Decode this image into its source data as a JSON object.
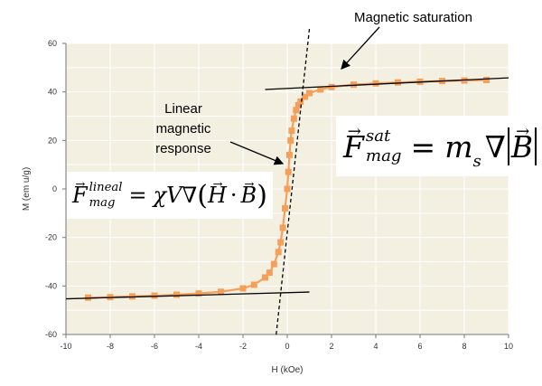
{
  "chart_data": {
    "type": "scatter",
    "xlabel": "H (kOe)",
    "ylabel": "M (em u/g)",
    "xlim": [
      -10,
      10
    ],
    "ylim": [
      -60,
      60
    ],
    "xticks": [
      "-10",
      "-8",
      "-6",
      "-4",
      "-2",
      "0",
      "2",
      "4",
      "6",
      "8",
      "10"
    ],
    "yticks": [
      "60",
      "40",
      "20",
      "0",
      "-20",
      "-40",
      "-60"
    ],
    "grid": true,
    "series": [
      {
        "color": "#f5a05a",
        "marker": "square",
        "x": [
          -9.0,
          -8.0,
          -7.0,
          -6.0,
          -5.0,
          -4.0,
          -3.0,
          -2.0,
          -1.5,
          -1.0,
          -0.8,
          -0.6,
          -0.4,
          -0.3,
          -0.2,
          -0.1,
          0.0,
          0.05,
          0.1,
          0.15,
          0.2,
          0.3,
          0.4,
          0.5,
          0.6,
          0.8,
          1.0,
          1.5,
          2.0,
          3.0,
          4.0,
          5.0,
          6.0,
          7.0,
          8.0,
          9.0
        ],
        "y": [
          -44.8,
          -44.6,
          -44.3,
          -44.0,
          -43.6,
          -43.1,
          -42.4,
          -41.0,
          -39.5,
          -36.5,
          -34.5,
          -31.0,
          -26.0,
          -22.0,
          -16.0,
          -8.0,
          0.0,
          7.0,
          14.0,
          20.0,
          24.0,
          29.0,
          32.5,
          34.5,
          36.0,
          38.0,
          39.5,
          41.0,
          42.0,
          43.0,
          43.5,
          43.9,
          44.2,
          44.5,
          44.7,
          44.9
        ]
      }
    ],
    "annotations": {
      "saturation": "Magnetic saturation",
      "linear": [
        "Linear",
        "magnetic",
        "response"
      ]
    },
    "guides": {
      "dashed": {
        "x1": -0.5,
        "y1": -60,
        "x2": 1.0,
        "y2": 60
      },
      "upper_solid": {
        "x1": -1.0,
        "y1": 41.0,
        "x2": 10.0,
        "y2": 45.8
      },
      "lower_solid": {
        "x1": -10.0,
        "y1": -45.3,
        "x2": 1.0,
        "y2": -42.5
      }
    }
  },
  "equations": {
    "sat": {
      "F": "F",
      "sup": "sat",
      "sub": "mag",
      "eq": "=",
      "m": "m",
      "ms": "s",
      "nabla": "∇",
      "B": "B"
    },
    "lin": {
      "F": "F",
      "sup": "lineal",
      "sub": "mag",
      "eq": "=",
      "chi": "χ",
      "V": "V",
      "nabla": "∇",
      "lp": "(",
      "H": "H",
      "dot": "·",
      "B": "B",
      "rp": ")"
    }
  }
}
